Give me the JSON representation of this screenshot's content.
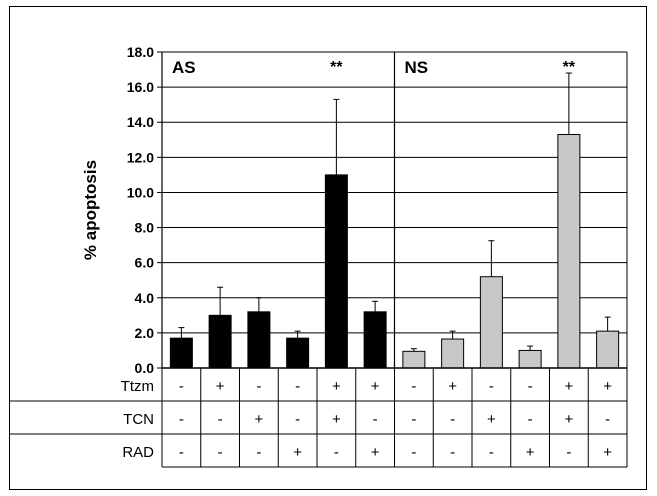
{
  "chart_data": {
    "type": "bar",
    "ylabel": "% apoptosis",
    "ylim": [
      0,
      18
    ],
    "ytick_labels": [
      "0.0",
      "2.0",
      "4.0",
      "6.0",
      "8.0",
      "10.0",
      "12.0",
      "14.0",
      "16.0",
      "18.0"
    ],
    "grid": true,
    "panels": [
      {
        "label": "AS",
        "significance": "**",
        "significance_bar_index": 4,
        "color": "#000000",
        "values": [
          1.7,
          3.0,
          3.2,
          1.7,
          11.0,
          3.2
        ],
        "errors": [
          0.6,
          1.6,
          0.8,
          0.4,
          4.3,
          0.6
        ]
      },
      {
        "label": "NS",
        "significance": "**",
        "significance_bar_index": 4,
        "color": "#c8c8c8",
        "values": [
          0.95,
          1.65,
          5.2,
          1.0,
          13.3,
          2.1
        ],
        "errors": [
          0.15,
          0.45,
          2.05,
          0.25,
          3.5,
          0.8
        ]
      }
    ],
    "treatment_table": [
      {
        "name": "Ttzm",
        "cells": [
          "-",
          "+",
          "-",
          "-",
          "+",
          "+",
          "-",
          "+",
          "-",
          "-",
          "+",
          "+"
        ]
      },
      {
        "name": "TCN",
        "cells": [
          "-",
          "-",
          "+",
          "-",
          "+",
          "-",
          "-",
          "-",
          "+",
          "-",
          "+",
          "-"
        ]
      },
      {
        "name": "RAD",
        "cells": [
          "-",
          "-",
          "-",
          "+",
          "-",
          "+",
          "-",
          "-",
          "-",
          "+",
          "-",
          "+"
        ]
      }
    ]
  }
}
